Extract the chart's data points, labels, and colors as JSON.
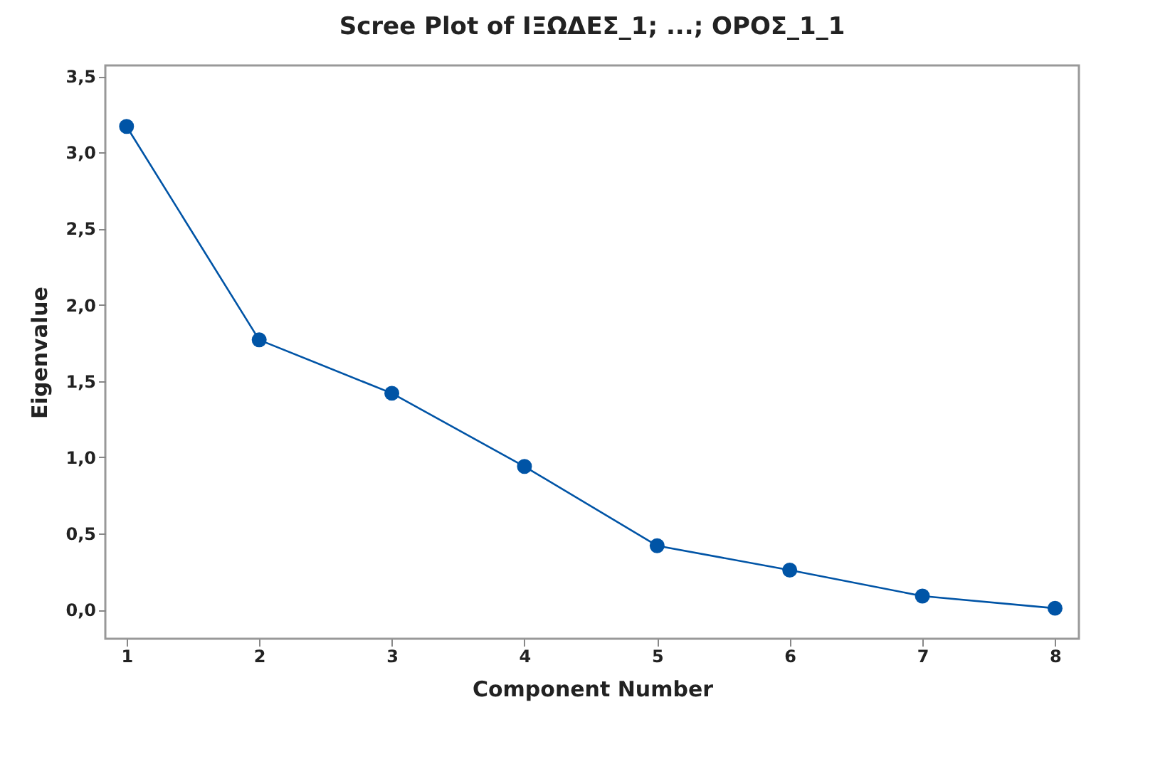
{
  "chart_data": {
    "type": "line",
    "title": "Scree Plot of ΙΞΩΔΕΣ_1; ...; ΟΡΟΣ_1_1",
    "xlabel": "Component Number",
    "ylabel": "Eigenvalue",
    "x": [
      1,
      2,
      3,
      4,
      5,
      6,
      7,
      8
    ],
    "series": [
      {
        "color": "#0054a6",
        "values": [
          3.17,
          1.77,
          1.42,
          0.94,
          0.42,
          0.26,
          0.09,
          0.01
        ]
      }
    ],
    "xlim": [
      0.84,
      8.18
    ],
    "xticks": [
      1,
      2,
      3,
      4,
      5,
      6,
      7,
      8
    ],
    "ylim": [
      -0.19,
      3.57
    ],
    "yticks": [
      {
        "value": 0,
        "label": "0,0"
      },
      {
        "value": 0.5,
        "label": "0,5"
      },
      {
        "value": 1,
        "label": "1,0"
      },
      {
        "value": 1.5,
        "label": "1,5"
      },
      {
        "value": 2,
        "label": "2,0"
      },
      {
        "value": 2.5,
        "label": "2,5"
      },
      {
        "value": 3,
        "label": "3,0"
      },
      {
        "value": 3.5,
        "label": "3,5"
      }
    ],
    "grid": false,
    "marker": "circle",
    "line_style": "solid"
  }
}
